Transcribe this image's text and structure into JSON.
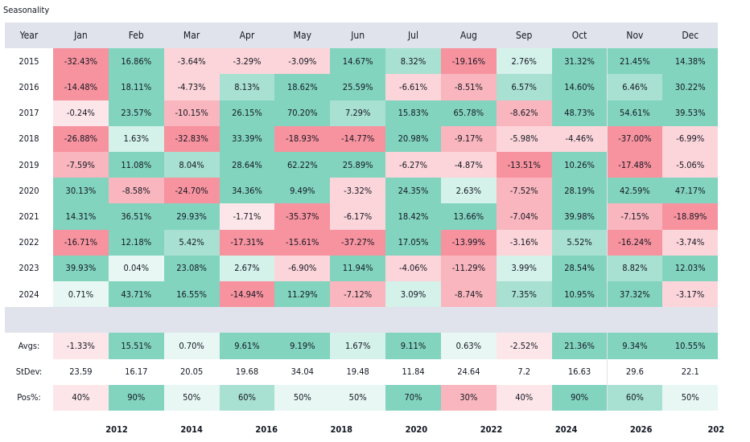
{
  "title": "Seasonality",
  "chart_data": {
    "type": "table",
    "header_label": "Year",
    "months": [
      "Jan",
      "Feb",
      "Mar",
      "Apr",
      "May",
      "Jun",
      "Jul",
      "Aug",
      "Sep",
      "Oct",
      "Nov",
      "Dec"
    ],
    "years": [
      {
        "year": "2015",
        "values": [
          "-32.43%",
          "16.86%",
          "-3.64%",
          "-3.29%",
          "-3.09%",
          "14.67%",
          "8.32%",
          "-19.16%",
          "2.76%",
          "31.32%",
          "21.45%",
          "14.38%"
        ]
      },
      {
        "year": "2016",
        "values": [
          "-14.48%",
          "18.11%",
          "-4.73%",
          "8.13%",
          "18.62%",
          "25.59%",
          "-6.61%",
          "-8.51%",
          "6.57%",
          "14.60%",
          "6.46%",
          "30.22%"
        ]
      },
      {
        "year": "2017",
        "values": [
          "-0.24%",
          "23.57%",
          "-10.15%",
          "26.15%",
          "70.20%",
          "7.29%",
          "15.83%",
          "65.78%",
          "-8.62%",
          "48.73%",
          "54.61%",
          "39.53%"
        ]
      },
      {
        "year": "2018",
        "values": [
          "-26.88%",
          "1.63%",
          "-32.83%",
          "33.39%",
          "-18.93%",
          "-14.77%",
          "20.98%",
          "-9.17%",
          "-5.98%",
          "-4.46%",
          "-37.00%",
          "-6.99%"
        ]
      },
      {
        "year": "2019",
        "values": [
          "-7.59%",
          "11.08%",
          "8.04%",
          "28.64%",
          "62.22%",
          "25.89%",
          "-6.27%",
          "-4.87%",
          "-13.51%",
          "10.26%",
          "-17.48%",
          "-5.06%"
        ]
      },
      {
        "year": "2020",
        "values": [
          "30.13%",
          "-8.58%",
          "-24.70%",
          "34.36%",
          "9.49%",
          "-3.32%",
          "24.35%",
          "2.63%",
          "-7.52%",
          "28.19%",
          "42.59%",
          "47.17%"
        ]
      },
      {
        "year": "2021",
        "values": [
          "14.31%",
          "36.51%",
          "29.93%",
          "-1.71%",
          "-35.37%",
          "-6.17%",
          "18.42%",
          "13.66%",
          "-7.04%",
          "39.98%",
          "-7.15%",
          "-18.89%"
        ]
      },
      {
        "year": "2022",
        "values": [
          "-16.71%",
          "12.18%",
          "5.42%",
          "-17.31%",
          "-15.61%",
          "-37.27%",
          "17.05%",
          "-13.99%",
          "-3.16%",
          "5.52%",
          "-16.24%",
          "-3.74%"
        ]
      },
      {
        "year": "2023",
        "values": [
          "39.93%",
          "0.04%",
          "23.08%",
          "2.67%",
          "-6.90%",
          "11.94%",
          "-4.06%",
          "-11.29%",
          "3.99%",
          "28.54%",
          "8.82%",
          "12.03%"
        ]
      },
      {
        "year": "2024",
        "values": [
          "0.71%",
          "43.71%",
          "16.55%",
          "-14.94%",
          "11.29%",
          "-7.12%",
          "3.09%",
          "-8.74%",
          "7.35%",
          "10.95%",
          "37.32%",
          "-3.17%"
        ]
      }
    ],
    "summary": [
      {
        "label": "Avgs:",
        "kind": "pct",
        "values": [
          "-1.33%",
          "15.51%",
          "0.70%",
          "9.61%",
          "9.19%",
          "1.67%",
          "9.11%",
          "0.63%",
          "-2.52%",
          "21.36%",
          "9.34%",
          "10.55%"
        ]
      },
      {
        "label": "StDev:",
        "kind": "plain",
        "values": [
          "23.59",
          "16.17",
          "20.05",
          "19.68",
          "34.04",
          "19.48",
          "11.84",
          "24.64",
          "7.2",
          "16.63",
          "29.6",
          "22.1"
        ]
      },
      {
        "label": "Pos%:",
        "kind": "pos",
        "values": [
          "40%",
          "90%",
          "50%",
          "60%",
          "50%",
          "50%",
          "70%",
          "30%",
          "40%",
          "90%",
          "60%",
          "50%"
        ]
      }
    ],
    "x_axis_ticks": [
      "2012",
      "2014",
      "2016",
      "2018",
      "2020",
      "2022",
      "2024",
      "2026",
      "202"
    ]
  },
  "colors": {
    "pos_strong": "#82d4bf",
    "pos_medium": "#a8e0d1",
    "pos_light": "#d4f1ea",
    "pos_faint": "#e8f7f3",
    "neg_strong": "#f7939f",
    "neg_medium": "#f9b6be",
    "neg_light": "#fcd5da",
    "neg_faint": "#fde6e9",
    "neutral": "#ffffff",
    "header_bg": "#e0e3eb"
  }
}
